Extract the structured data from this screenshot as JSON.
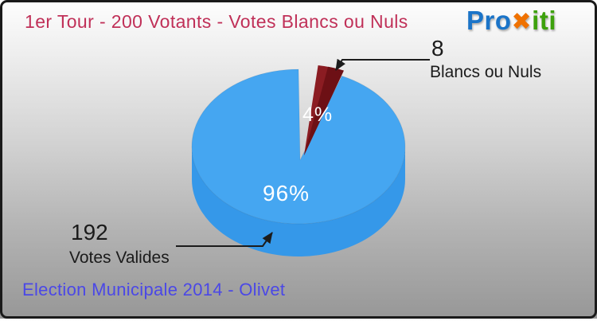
{
  "header": {
    "title": "1er Tour - 200 Votants - Votes Blancs ou Nuls"
  },
  "logo": {
    "part1": "Pro",
    "part2": "✖",
    "part3": "iti",
    "color1": "#1b74c8",
    "color2": "#ef7100",
    "color3": "#3da10c"
  },
  "footer": {
    "title": "Election Municipale 2014 - Olivet"
  },
  "callouts": {
    "blancs_value": "8",
    "blancs_label": "Blancs ou Nuls",
    "valides_value": "192",
    "valides_label": "Votes Valides"
  },
  "chart_data": {
    "type": "pie",
    "style": "3d-exploded",
    "title": "1er Tour - 200 Votants - Votes Blancs ou Nuls",
    "subtitle": "Election Municipale 2014 - Olivet",
    "total_votants": 200,
    "slices": [
      {
        "label": "Votes Valides",
        "value": 192,
        "percent": 96,
        "percent_label": "96%",
        "color": "#45a6f1",
        "side_color": "#3598e9",
        "exploded": false
      },
      {
        "label": "Blancs ou Nuls",
        "value": 8,
        "percent": 4,
        "percent_label": "4%",
        "color": "#8b1c22",
        "shade_color": "#6d1015",
        "exploded": true
      }
    ],
    "legend": "none",
    "label_color": "#ffffff",
    "leader_line_color": "#1c1c1c"
  }
}
